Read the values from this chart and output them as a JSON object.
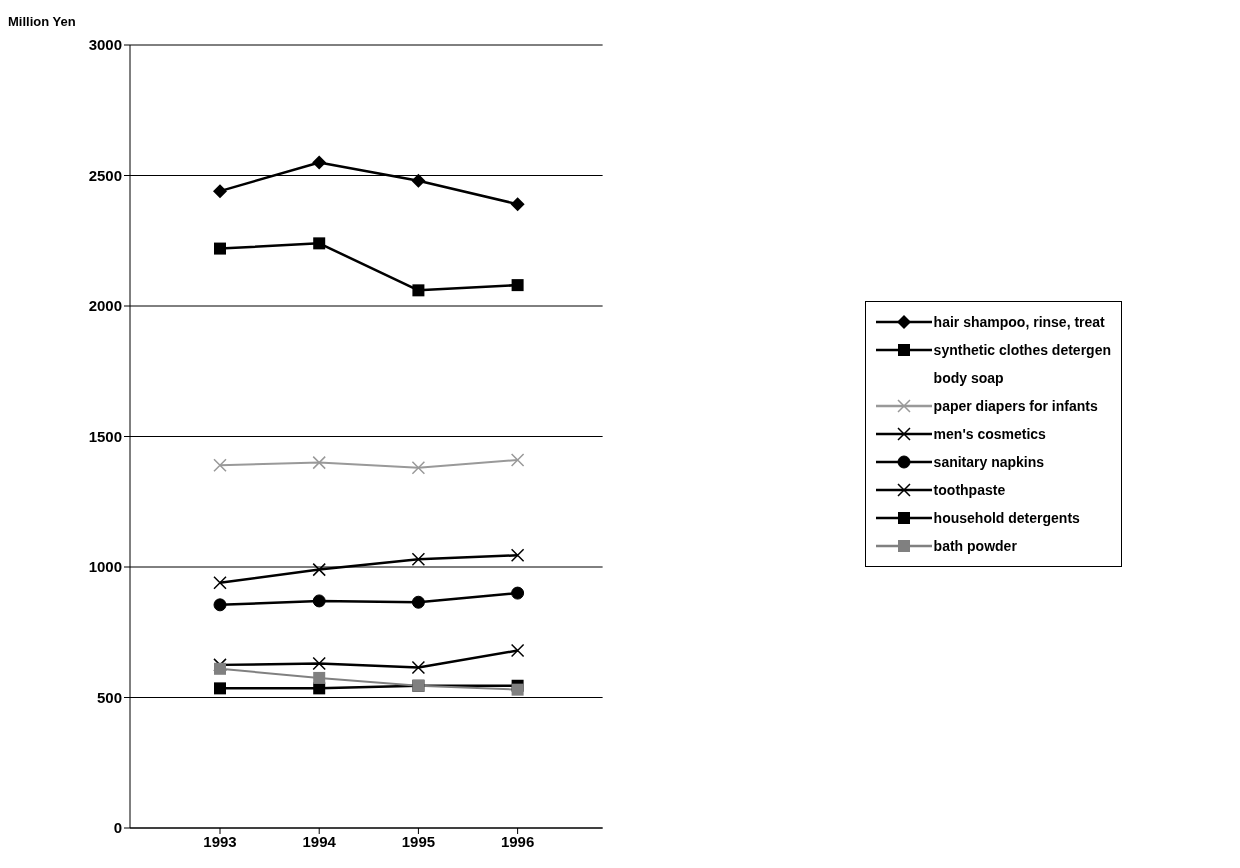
{
  "chart_data": {
    "type": "line",
    "ylabel": "Million Yen",
    "categories": [
      "1993",
      "1994",
      "1995",
      "1996"
    ],
    "ylim": [
      0,
      3000
    ],
    "yticks": [
      0,
      500,
      1000,
      1500,
      2000,
      2500,
      3000
    ],
    "grid": "y",
    "legend": "right",
    "line_style": "solid",
    "series": [
      {
        "name": "hair shampoo, rinse, treat",
        "color": "#000000",
        "marker": "diamond",
        "values": [
          2440,
          2550,
          2480,
          2390
        ]
      },
      {
        "name": "synthetic clothes detergen",
        "color": "#000000",
        "marker": "square",
        "values": [
          2220,
          2240,
          2060,
          2080
        ]
      },
      {
        "name": "body soap",
        "marker": "none",
        "values": [
          null,
          null,
          null,
          null
        ]
      },
      {
        "name": "paper diapers for infants",
        "color": "#999999",
        "marker": "cross",
        "values": [
          1390,
          1400,
          1380,
          1410
        ]
      },
      {
        "name": "men's cosmetics",
        "color": "#000000",
        "marker": "cross",
        "values": [
          940,
          990,
          1030,
          1045
        ]
      },
      {
        "name": "sanitary napkins",
        "color": "#000000",
        "marker": "circle",
        "values": [
          855,
          870,
          865,
          900
        ]
      },
      {
        "name": "toothpaste",
        "color": "#000000",
        "marker": "cross",
        "values": [
          625,
          630,
          615,
          680
        ]
      },
      {
        "name": "household detergents",
        "color": "#000000",
        "marker": "square",
        "values": [
          535,
          535,
          545,
          545
        ]
      },
      {
        "name": "bath powder",
        "color": "#808080",
        "marker": "square",
        "values": [
          610,
          575,
          545,
          530
        ]
      }
    ]
  }
}
